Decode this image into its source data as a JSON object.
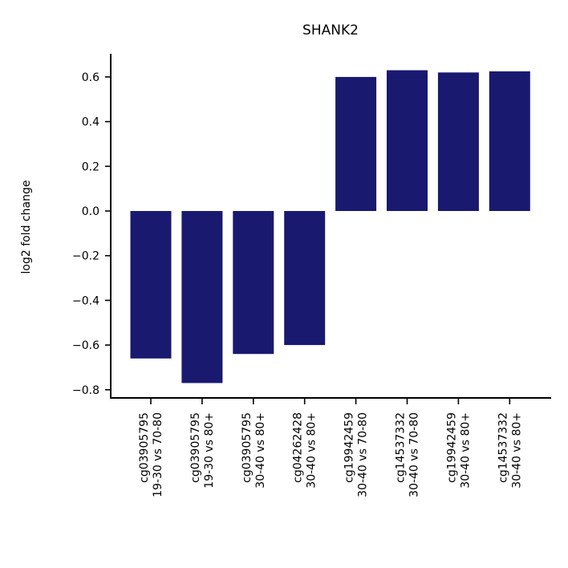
{
  "chart_data": {
    "type": "bar",
    "title": "SHANK2",
    "xlabel": "",
    "ylabel": "log2 fold change",
    "categories": [
      [
        "cg03905795",
        "19-30 vs 70-80"
      ],
      [
        "cg03905795",
        "19-30 vs 80+"
      ],
      [
        "cg03905795",
        "30-40 vs 80+"
      ],
      [
        "cg04262428",
        "30-40 vs 80+"
      ],
      [
        "cg19942459",
        "30-40 vs 70-80"
      ],
      [
        "cg14537332",
        "30-40 vs 70-80"
      ],
      [
        "cg19942459",
        "30-40 vs 80+"
      ],
      [
        "cg14537332",
        "30-40 vs 80+"
      ]
    ],
    "values": [
      -0.66,
      -0.77,
      -0.64,
      -0.6,
      0.6,
      0.63,
      0.62,
      0.625
    ],
    "ylim": [
      -0.84,
      0.7
    ],
    "yticks": [
      -0.8,
      -0.6,
      -0.4,
      -0.2,
      0.0,
      0.2,
      0.4,
      0.6
    ],
    "ytick_labels": [
      "−0.8",
      "−0.6",
      "−0.4",
      "−0.2",
      "0.0",
      "0.2",
      "0.4",
      "0.6"
    ],
    "bar_color": "#191970",
    "grid": false,
    "legend": "none"
  }
}
